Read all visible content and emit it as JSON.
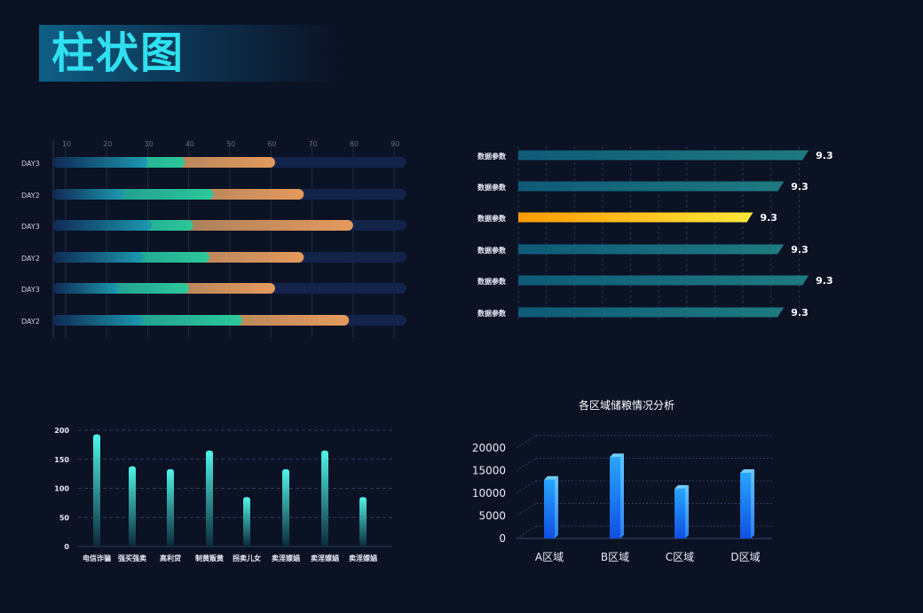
{
  "page": {
    "title": "柱状图"
  },
  "chart_data": [
    {
      "type": "bar",
      "orientation": "horizontal-stacked",
      "x_ticks": [
        "10",
        "20",
        "30",
        "40",
        "50",
        "60",
        "70",
        "80",
        "90"
      ],
      "xlim": [
        7,
        93
      ],
      "categories": [
        "DAY3",
        "DAY2",
        "DAY3",
        "DAY2",
        "DAY3",
        "DAY2"
      ],
      "stops": [
        {
          "teal": 30,
          "green": 39,
          "total": 61
        },
        {
          "teal": 24,
          "green": 46,
          "total": 68
        },
        {
          "teal": 31,
          "green": 41,
          "total": 80
        },
        {
          "teal": 29,
          "green": 45,
          "total": 68
        },
        {
          "teal": 23,
          "green": 40,
          "total": 61
        },
        {
          "teal": 29,
          "green": 53,
          "total": 79
        }
      ]
    },
    {
      "type": "bar",
      "orientation": "horizontal",
      "categories": [
        "数据参数",
        "数据参数",
        "数据参数",
        "数据参数",
        "数据参数",
        "数据参数"
      ],
      "values": [
        9.3,
        9.3,
        9.3,
        9.3,
        9.3,
        9.3
      ],
      "value_labels": [
        "9.3",
        "9.3",
        "9.3",
        "9.3",
        "9.3",
        "9.3"
      ],
      "bar_fill": [
        0.94,
        0.86,
        0.76,
        0.86,
        0.94,
        0.86
      ],
      "highlight_index": 2,
      "colors": {
        "normal": "#1a6e80",
        "highlight": "#f5c518"
      }
    },
    {
      "type": "bar",
      "categories": [
        "电信诈骗",
        "强买强卖",
        "高利贷",
        "制黄贩黄",
        "拐卖儿女",
        "卖淫嫖娼",
        "卖淫嫖娼",
        "卖淫嫖娼"
      ],
      "values": [
        193,
        138,
        133,
        165,
        85,
        133,
        165,
        85
      ],
      "y_ticks": [
        "0",
        "50",
        "100",
        "150",
        "200"
      ],
      "ylim": [
        0,
        200
      ]
    },
    {
      "type": "bar",
      "title": "各区域储粮情况分析",
      "categories": [
        "A区域",
        "B区域",
        "C区域",
        "D区域"
      ],
      "values": [
        13000,
        18000,
        11000,
        14500
      ],
      "y_ticks": [
        "0",
        "5000",
        "10000",
        "15000",
        "20000"
      ],
      "ylim": [
        0,
        20000
      ]
    }
  ]
}
